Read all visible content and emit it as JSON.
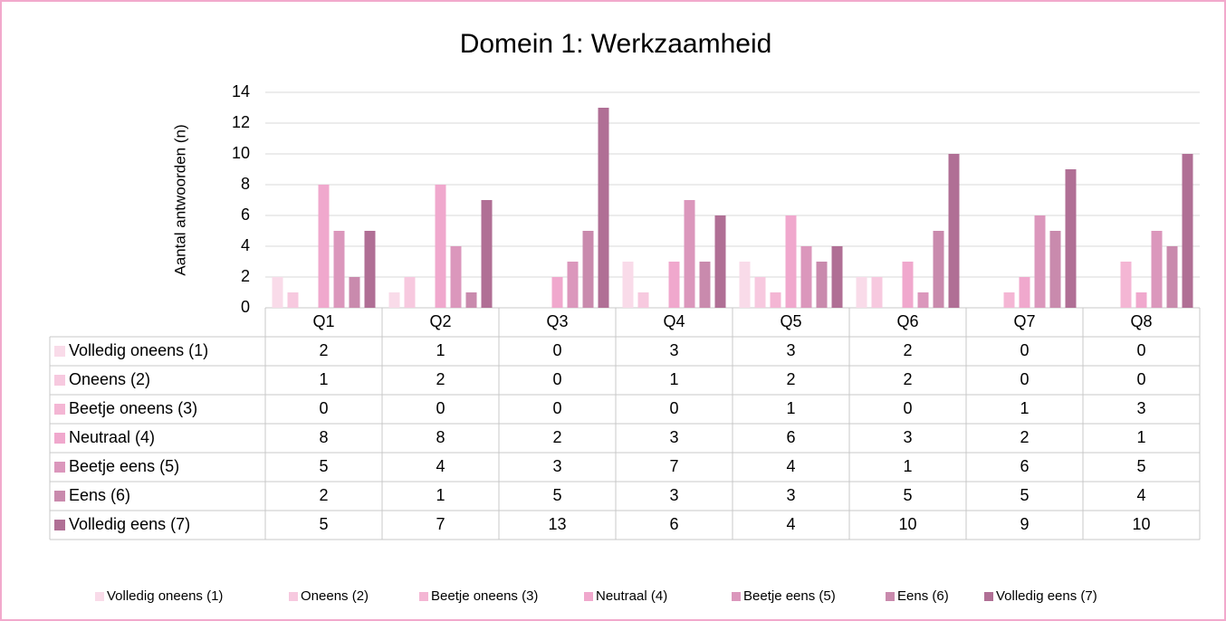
{
  "chart_data": {
    "type": "bar",
    "title": "Domein 1: Werkzaamheid",
    "y_label": "Aantal antwoorden (n)",
    "categories": [
      "Q1",
      "Q2",
      "Q3",
      "Q4",
      "Q5",
      "Q6",
      "Q7",
      "Q8"
    ],
    "series": [
      {
        "name": "Volledig oneens (1)",
        "color": "#f9dbe9",
        "values": [
          2,
          1,
          0,
          3,
          3,
          2,
          0,
          0
        ]
      },
      {
        "name": "Oneens (2)",
        "color": "#f7c9df",
        "values": [
          1,
          2,
          0,
          1,
          2,
          2,
          0,
          0
        ]
      },
      {
        "name": "Beetje oneens (3)",
        "color": "#f4b6d4",
        "values": [
          0,
          0,
          0,
          0,
          1,
          0,
          1,
          3
        ]
      },
      {
        "name": "Neutraal (4)",
        "color": "#f0a8cd",
        "values": [
          8,
          8,
          2,
          3,
          6,
          3,
          2,
          1
        ]
      },
      {
        "name": "Beetje eens (5)",
        "color": "#db97bc",
        "values": [
          5,
          4,
          3,
          7,
          4,
          1,
          6,
          5
        ]
      },
      {
        "name": "Eens (6)",
        "color": "#c98aad",
        "values": [
          2,
          1,
          5,
          3,
          3,
          5,
          5,
          4
        ]
      },
      {
        "name": "Volledig eens (7)",
        "color": "#b06f95",
        "values": [
          5,
          7,
          13,
          6,
          4,
          10,
          9,
          10
        ]
      }
    ],
    "ylim": [
      0,
      14
    ],
    "yticks": [
      0,
      2,
      4,
      6,
      8,
      10,
      12,
      14
    ],
    "grid": true,
    "legend": "bottom"
  }
}
